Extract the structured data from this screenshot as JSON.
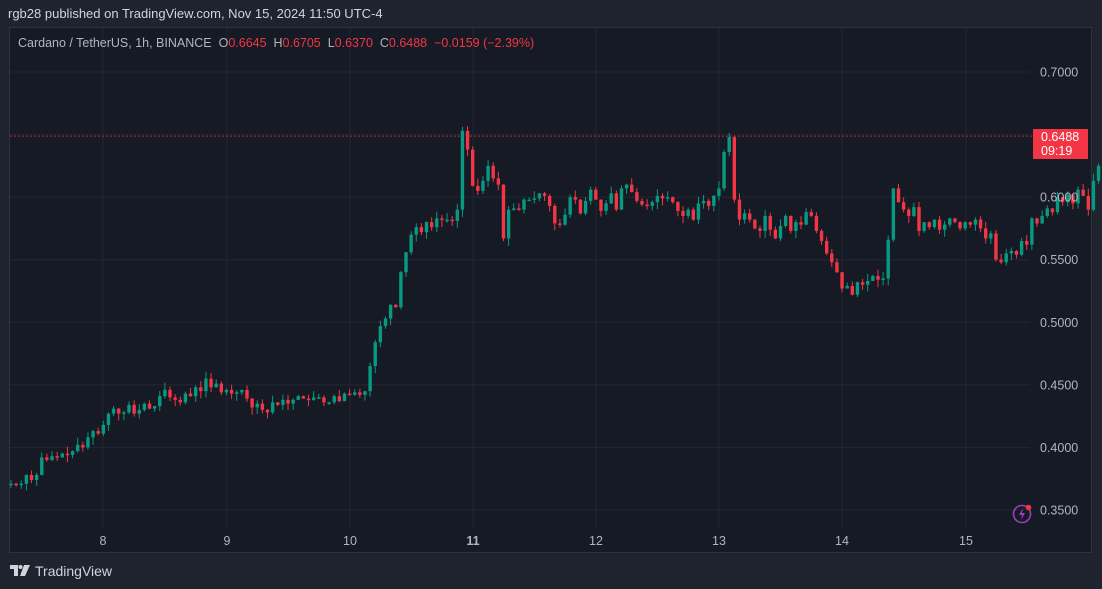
{
  "header": {
    "published": "rgb28 published on TradingView.com, Nov 15, 2024 11:50 UTC-4"
  },
  "legend": {
    "symbol": "Cardano / TetherUS, 1h, BINANCE",
    "o_label": "O",
    "o": "0.6645",
    "h_label": "H",
    "h": "0.6705",
    "l_label": "L",
    "l": "0.6370",
    "c_label": "C",
    "c": "0.6488",
    "change": "−0.0159 (−2.39%)"
  },
  "price_badge": {
    "price": "0.6488",
    "countdown": "09:19"
  },
  "footer": {
    "brand": "TradingView"
  },
  "colors": {
    "up": "#089981",
    "down": "#f23645",
    "background": "#161a25",
    "grid": "#232733",
    "accent_icon": "#9c3dba"
  },
  "chart_data": {
    "type": "candlestick",
    "title": "Cardano / TetherUS, 1h, BINANCE",
    "xlabel": "",
    "ylabel": "",
    "x_ticks": [
      "8",
      "9",
      "10",
      "11",
      "12",
      "13",
      "14",
      "15"
    ],
    "y_ticks": [
      "0.7000",
      "0.6500",
      "0.6000",
      "0.5500",
      "0.5000",
      "0.4500",
      "0.4000",
      "0.3500"
    ],
    "ylim": [
      0.34,
      0.71
    ],
    "grid": true,
    "last_price": 0.6488,
    "last_price_line": true,
    "candles_close_approx": [
      0.371,
      0.37,
      0.371,
      0.378,
      0.374,
      0.378,
      0.392,
      0.39,
      0.393,
      0.392,
      0.395,
      0.394,
      0.397,
      0.402,
      0.4,
      0.408,
      0.413,
      0.411,
      0.418,
      0.427,
      0.431,
      0.427,
      0.428,
      0.434,
      0.427,
      0.43,
      0.435,
      0.431,
      0.433,
      0.441,
      0.446,
      0.44,
      0.438,
      0.436,
      0.443,
      0.441,
      0.448,
      0.445,
      0.455,
      0.448,
      0.451,
      0.444,
      0.446,
      0.443,
      0.444,
      0.446,
      0.439,
      0.432,
      0.435,
      0.43,
      0.428,
      0.436,
      0.434,
      0.438,
      0.435,
      0.438,
      0.441,
      0.439,
      0.438,
      0.44,
      0.44,
      0.436,
      0.436,
      0.441,
      0.437,
      0.443,
      0.442,
      0.444,
      0.442,
      0.445,
      0.465,
      0.484,
      0.497,
      0.503,
      0.514,
      0.512,
      0.54,
      0.556,
      0.57,
      0.576,
      0.572,
      0.58,
      0.576,
      0.583,
      0.582,
      0.582,
      0.581,
      0.59,
      0.653,
      0.638,
      0.609,
      0.605,
      0.613,
      0.625,
      0.615,
      0.61,
      0.567,
      0.59,
      0.591,
      0.59,
      0.598,
      0.598,
      0.599,
      0.603,
      0.601,
      0.593,
      0.579,
      0.578,
      0.586,
      0.6,
      0.598,
      0.587,
      0.597,
      0.606,
      0.598,
      0.589,
      0.595,
      0.603,
      0.59,
      0.607,
      0.61,
      0.604,
      0.597,
      0.594,
      0.593,
      0.596,
      0.601,
      0.599,
      0.6,
      0.596,
      0.589,
      0.585,
      0.59,
      0.582,
      0.595,
      0.597,
      0.593,
      0.601,
      0.607,
      0.636,
      0.648,
      0.598,
      0.582,
      0.587,
      0.582,
      0.575,
      0.573,
      0.585,
      0.574,
      0.567,
      0.577,
      0.585,
      0.573,
      0.58,
      0.578,
      0.588,
      0.585,
      0.573,
      0.565,
      0.555,
      0.548,
      0.54,
      0.527,
      0.529,
      0.522,
      0.532,
      0.53,
      0.533,
      0.537,
      0.534,
      0.535,
      0.566,
      0.607,
      0.596,
      0.59,
      0.585,
      0.592,
      0.573,
      0.58,
      0.576,
      0.582,
      0.574,
      0.578,
      0.583,
      0.58,
      0.575,
      0.58,
      0.578,
      0.582,
      0.575,
      0.567,
      0.571,
      0.55,
      0.548,
      0.555,
      0.557,
      0.554,
      0.565,
      0.562,
      0.583,
      0.579,
      0.585,
      0.591,
      0.588,
      0.6,
      0.596,
      0.602,
      0.595,
      0.606,
      0.601,
      0.59,
      0.613,
      0.625,
      0.616,
      0.656,
      0.666,
      0.664,
      0.649
    ]
  }
}
